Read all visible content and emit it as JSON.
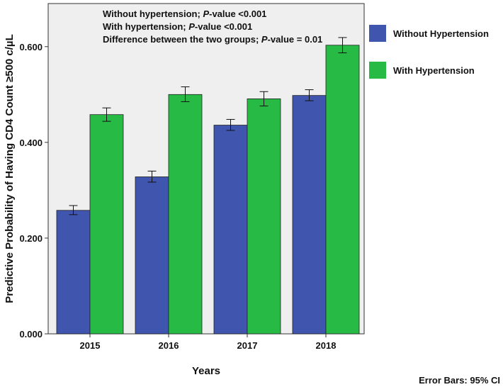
{
  "chart_data": {
    "type": "bar",
    "categories": [
      "2015",
      "2016",
      "2017",
      "2018"
    ],
    "series": [
      {
        "name": "Without Hypertension",
        "color": "#3F55AE",
        "values": [
          0.258,
          0.328,
          0.436,
          0.498
        ],
        "ci_low": [
          0.249,
          0.317,
          0.425,
          0.487
        ],
        "ci_high": [
          0.268,
          0.34,
          0.448,
          0.51
        ]
      },
      {
        "name": "With Hypertension",
        "color": "#27BB45",
        "values": [
          0.458,
          0.5,
          0.491,
          0.603
        ],
        "ci_low": [
          0.444,
          0.485,
          0.476,
          0.587
        ],
        "ci_high": [
          0.472,
          0.516,
          0.506,
          0.619
        ]
      }
    ],
    "xlabel": "Years",
    "ylabel": "Predictive Probability of Having CD4 Count ≥500 c/µL",
    "ylim": [
      0,
      0.69
    ],
    "yticks": [
      0.0,
      0.2,
      0.4,
      0.6
    ],
    "ytick_labels": [
      "0.000",
      "0.200",
      "0.400",
      "0.600"
    ],
    "grid": false,
    "plot_background": "#EFEFEF",
    "legend_position": "right",
    "annotations": [
      {
        "parts": [
          {
            "text": "Without hypertension; ",
            "italic": false
          },
          {
            "text": "P",
            "italic": true
          },
          {
            "text": "-value <0.001",
            "italic": false
          }
        ]
      },
      {
        "parts": [
          {
            "text": "With hypertension; ",
            "italic": false
          },
          {
            "text": "P",
            "italic": true
          },
          {
            "text": "-value <0.001",
            "italic": false
          }
        ]
      },
      {
        "parts": [
          {
            "text": "Difference between the two groups; ",
            "italic": false
          },
          {
            "text": "P",
            "italic": true
          },
          {
            "text": "-value = 0.01",
            "italic": false
          }
        ]
      }
    ],
    "footnote": "Error Bars: 95% CI"
  }
}
